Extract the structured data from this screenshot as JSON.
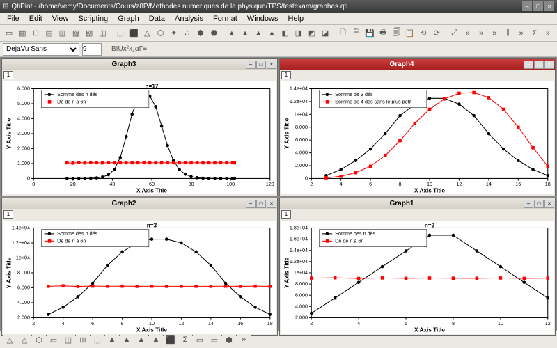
{
  "app": {
    "title": "QtiPlot - /home/vemy/Documents/Cours/z8P/Methodes numeriques de la physique/TPS/testexam/graphes.qti",
    "window_buttons": [
      "–",
      "□",
      "×"
    ]
  },
  "menu": [
    "File",
    "Edit",
    "View",
    "Scripting",
    "Graph",
    "Data",
    "Analysis",
    "Format",
    "Windows",
    "Help"
  ],
  "toolbar_icons": [
    "▭",
    "▦",
    "⊞",
    "▤",
    "▥",
    "▨",
    "▧",
    "◫",
    "⬚",
    "⬛",
    "△",
    "⬡",
    "✦",
    "∴",
    "⬢",
    "⬣",
    "▲",
    "▲",
    "▲",
    "▲",
    "◧",
    "◨",
    "◩",
    "◪",
    "🗋",
    "🗎",
    "💾",
    "🖶",
    "🗐",
    "📋",
    "⟲",
    "⟳",
    "⤢",
    "»",
    "»",
    "»",
    "⫿",
    "»",
    "Σ",
    "»"
  ],
  "format": {
    "font_name": "DejaVu Sans",
    "font_size": "9",
    "buttons": [
      "B",
      "I",
      "U",
      "x²",
      "x₂",
      "α",
      "Γ",
      "≡"
    ]
  },
  "commonstyle": {
    "axis_color": "#000000",
    "grid_color": "#e0e0e0",
    "series1_color": "#000000",
    "series2_color": "#ff0000",
    "marker_size": 2.2,
    "line_width": 1,
    "xlabel": "X Axis Title",
    "ylabel": "Y Axis Title",
    "label_fontsize": 8,
    "tick_fontsize": 7
  },
  "graphs": [
    {
      "id": "Graph3",
      "active": false,
      "layer": "1",
      "subtitle": "n=17",
      "legend": [
        "Somme des n dés",
        "Dé de n à 6n"
      ],
      "legend_markers": [
        "circle",
        "square"
      ],
      "xlim": [
        0,
        120
      ],
      "xticks": [
        0,
        20,
        40,
        60,
        80,
        100,
        120
      ],
      "ylim": [
        0,
        6000
      ],
      "yticks": [
        0,
        1000,
        2000,
        3000,
        4000,
        5000,
        6000
      ],
      "ytick_labels": [
        "0",
        "1.000",
        "2.000",
        "3.000",
        "4.000",
        "5.000",
        "6.000"
      ],
      "series1_x": [
        17,
        20,
        23,
        26,
        29,
        32,
        35,
        38,
        41,
        44,
        47,
        50,
        53,
        56,
        59,
        62,
        65,
        68,
        71,
        74,
        77,
        80,
        83,
        86,
        89,
        92,
        95,
        98,
        101,
        102
      ],
      "series1_y": [
        0,
        0,
        0,
        5,
        15,
        40,
        100,
        250,
        600,
        1400,
        2800,
        4300,
        5400,
        5700,
        5500,
        4800,
        3500,
        2200,
        1200,
        600,
        280,
        120,
        50,
        20,
        8,
        3,
        1,
        0,
        0,
        0
      ],
      "series2_x": [
        17,
        20,
        23,
        26,
        29,
        32,
        35,
        38,
        41,
        44,
        47,
        50,
        53,
        56,
        59,
        62,
        65,
        68,
        71,
        74,
        77,
        80,
        83,
        86,
        89,
        92,
        95,
        98,
        101,
        102
      ],
      "series2_y": [
        1050,
        1030,
        1070,
        1040,
        1060,
        1050,
        1045,
        1055,
        1048,
        1052,
        1050,
        1049,
        1051,
        1050,
        1050,
        1050,
        1049,
        1051,
        1050,
        1050,
        1052,
        1048,
        1053,
        1047,
        1051,
        1049,
        1050,
        1050,
        1055,
        1045
      ]
    },
    {
      "id": "Graph4",
      "active": true,
      "layer": "1",
      "subtitle": "",
      "legend": [
        "Somme de 3 dés",
        "Somme de 4 dés sans le plus petit"
      ],
      "legend_markers": [
        "circle",
        "square"
      ],
      "xlim": [
        2,
        18
      ],
      "xticks": [
        2,
        4,
        6,
        8,
        10,
        12,
        14,
        16,
        18
      ],
      "ylim": [
        0,
        14000
      ],
      "yticks": [
        0,
        2000,
        4000,
        6000,
        8000,
        10000,
        12000,
        14000
      ],
      "ytick_labels": [
        "0",
        "2.000",
        "4.000",
        "6.000",
        "8.000",
        "1e+04",
        "1.2e+04",
        "1.4e+04"
      ],
      "series1_x": [
        3,
        4,
        5,
        6,
        7,
        8,
        9,
        10,
        11,
        12,
        13,
        14,
        15,
        16,
        17,
        18
      ],
      "series1_y": [
        450,
        1400,
        2800,
        4600,
        7000,
        9800,
        11600,
        12500,
        12500,
        11600,
        9800,
        7000,
        4600,
        2800,
        1400,
        450
      ],
      "series2_x": [
        3,
        4,
        5,
        6,
        7,
        8,
        9,
        10,
        11,
        12,
        13,
        14,
        15,
        16,
        17,
        18
      ],
      "series2_y": [
        100,
        350,
        900,
        1900,
        3600,
        5900,
        8600,
        10800,
        12400,
        13300,
        13400,
        12600,
        10800,
        8000,
        4800,
        1900
      ]
    },
    {
      "id": "Graph2",
      "active": false,
      "layer": "1",
      "subtitle": "n=3",
      "legend": [
        "Somme des n dés",
        "Dé de n à 6n"
      ],
      "legend_markers": [
        "circle",
        "square"
      ],
      "xlim": [
        2,
        18
      ],
      "xticks": [
        2,
        4,
        6,
        8,
        10,
        12,
        14,
        16,
        18
      ],
      "ylim": [
        2000,
        14000
      ],
      "yticks": [
        2000,
        4000,
        6000,
        8000,
        10000,
        12000,
        14000
      ],
      "ytick_labels": [
        "2.000",
        "4.000",
        "6.000",
        "8.000",
        "1e+04",
        "1.2e+04",
        "1.4e+04"
      ],
      "series1_x": [
        3,
        4,
        5,
        6,
        7,
        8,
        9,
        10,
        11,
        12,
        13,
        14,
        15,
        16,
        17,
        18
      ],
      "series1_y": [
        2450,
        3400,
        4800,
        6600,
        9000,
        10800,
        12000,
        12500,
        12500,
        12000,
        10800,
        9000,
        6600,
        4800,
        3400,
        2450
      ],
      "series2_x": [
        3,
        4,
        5,
        6,
        7,
        8,
        9,
        10,
        11,
        12,
        13,
        14,
        15,
        16,
        17,
        18
      ],
      "series2_y": [
        6200,
        6250,
        6180,
        6220,
        6200,
        6210,
        6190,
        6205,
        6195,
        6200,
        6200,
        6195,
        6205,
        6190,
        6210,
        6200
      ]
    },
    {
      "id": "Graph1",
      "active": false,
      "layer": "1",
      "subtitle": "n=2",
      "legend": [
        "Somme des n dés",
        "Dé de n à 6n"
      ],
      "legend_markers": [
        "circle",
        "square"
      ],
      "xlim": [
        2,
        12
      ],
      "xticks": [
        2,
        4,
        6,
        8,
        10,
        12
      ],
      "ylim": [
        2000,
        18000
      ],
      "yticks": [
        2000,
        4000,
        6000,
        8000,
        10000,
        12000,
        14000,
        16000,
        18000
      ],
      "ytick_labels": [
        "2.000",
        "4.000",
        "6.000",
        "8.000",
        "1e+04",
        "1.2e+04",
        "1.4e+04",
        "1.6e+04",
        "1.8e+04"
      ],
      "series1_x": [
        2,
        3,
        4,
        5,
        6,
        7,
        8,
        9,
        10,
        11,
        12
      ],
      "series1_y": [
        2800,
        5500,
        8300,
        11100,
        13900,
        16700,
        16700,
        13900,
        11100,
        8300,
        5500
      ],
      "series2_x": [
        2,
        3,
        4,
        5,
        6,
        7,
        8,
        9,
        10,
        11,
        12
      ],
      "series2_y": [
        9050,
        9100,
        9000,
        9080,
        9020,
        9060,
        9040,
        9030,
        9070,
        9010,
        9050
      ]
    }
  ],
  "bottom_icons": [
    "△",
    "△",
    "⬡",
    "▭",
    "◫",
    "⊞",
    "⬚",
    "▲",
    "▲",
    "▲",
    "▲",
    "⬛",
    "Σ",
    "▭",
    "▭",
    "⬢",
    "»"
  ]
}
